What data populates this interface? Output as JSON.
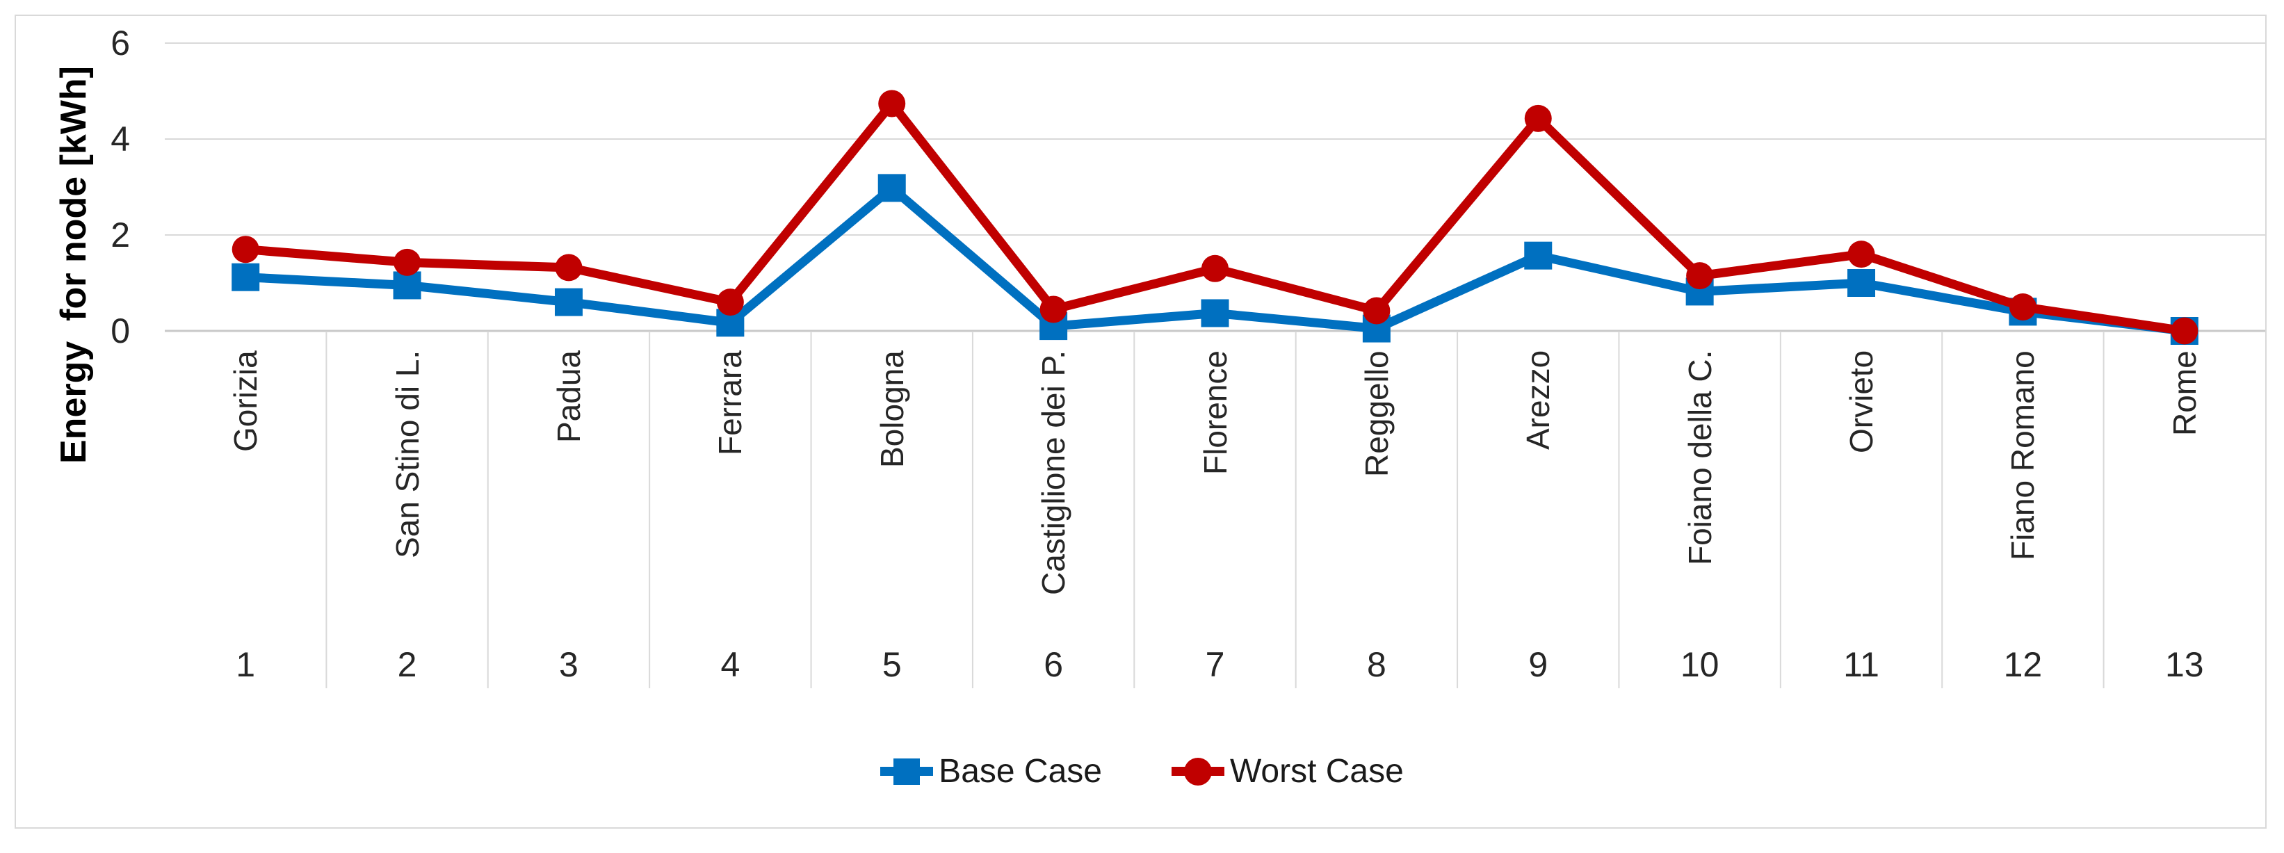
{
  "figure": {
    "background": "#FFFFFF",
    "border_color": "#D9D9D9",
    "grid_color": "#D9D9D9",
    "axis_color": "#C9C9C9",
    "text_color": "#262626"
  },
  "chart_data": {
    "type": "line",
    "title": "",
    "ylabel": "Energy  for node [kWh]",
    "xlabel": "",
    "ylim": [
      0,
      6
    ],
    "yticks": [
      0,
      2,
      4,
      6
    ],
    "grid": true,
    "legend_position": "bottom",
    "categories": [
      "Gorizia",
      "San Stino di L.",
      "Padua",
      "Ferrara",
      "Bologna",
      "Castiglione dei P.",
      "Florence",
      "Reggello",
      "Arezzo",
      "Foiano della C.",
      "Orvieto",
      "Fiano Romano",
      "Rome"
    ],
    "category_numbers": [
      "1",
      "2",
      "3",
      "4",
      "5",
      "6",
      "7",
      "8",
      "9",
      "10",
      "11",
      "12",
      "13"
    ],
    "series": [
      {
        "name": "Base Case",
        "color": "#0070C0",
        "marker": "square",
        "values": [
          1.12,
          0.95,
          0.6,
          0.17,
          2.98,
          0.1,
          0.37,
          0.05,
          1.57,
          0.82,
          1.0,
          0.4,
          0.0
        ]
      },
      {
        "name": "Worst Case",
        "color": "#C00000",
        "marker": "circle",
        "values": [
          1.7,
          1.43,
          1.32,
          0.6,
          4.74,
          0.45,
          1.3,
          0.42,
          4.43,
          1.15,
          1.6,
          0.5,
          0.0
        ]
      }
    ]
  }
}
